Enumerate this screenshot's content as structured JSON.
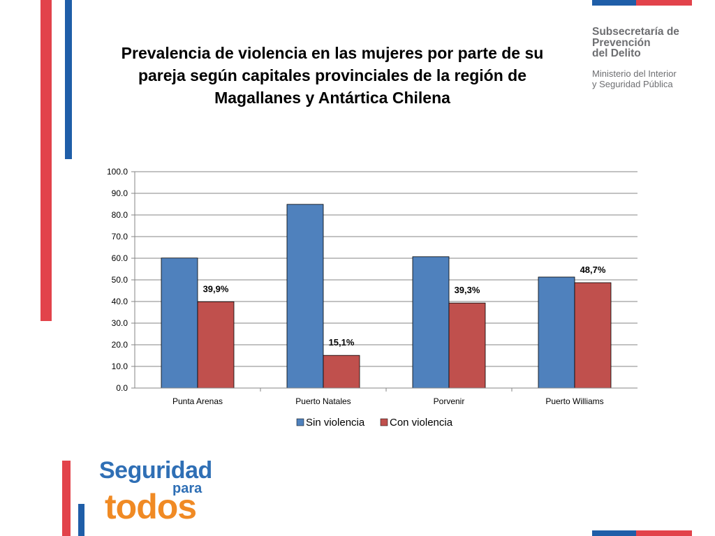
{
  "slide": {
    "title": "Prevalencia de violencia en las mujeres por parte de su pareja según capitales provinciales de la región de Magallanes y Antártica Chilena",
    "title_lines": [
      "Prevalencia de violencia en las mujeres por parte de su",
      "pareja según capitales provinciales de la región de",
      "Magallanes y Antártica Chilena"
    ],
    "brand_color_red": "#e2434b",
    "brand_color_blue": "#1f5ea8"
  },
  "logo_top": {
    "org_line1": "Subsecretaría de",
    "org_line2": "Prevención",
    "org_line3": "del Delito",
    "ministry_line1": "Ministerio del Interior",
    "ministry_line2": "y Seguridad Pública"
  },
  "logo_bottom": {
    "word1": "Seguridad",
    "word2": "para",
    "word3": "todos",
    "color_blue": "#2f6fb5",
    "color_orange": "#f08a24"
  },
  "chart_data": {
    "type": "bar",
    "title": "",
    "xlabel": "",
    "ylabel": "",
    "categories": [
      "Punta Arenas",
      "Puerto Natales",
      "Porvenir",
      "Puerto Williams"
    ],
    "series": [
      {
        "name": "Sin violencia",
        "values": [
          60.1,
          84.9,
          60.7,
          51.3
        ],
        "color": "#4f81bd"
      },
      {
        "name": "Con violencia",
        "values": [
          39.9,
          15.1,
          39.3,
          48.7
        ],
        "color": "#c0504d"
      }
    ],
    "data_labels": {
      "Con violencia": [
        "39,9%",
        "15,1%",
        "39,3%",
        "48,7%"
      ]
    },
    "ylim": [
      0,
      100
    ],
    "yticks": [
      "0.0",
      "10.0",
      "20.0",
      "30.0",
      "40.0",
      "50.0",
      "60.0",
      "70.0",
      "80.0",
      "90.0",
      "100.0"
    ],
    "grid": true,
    "legend_position": "bottom"
  }
}
